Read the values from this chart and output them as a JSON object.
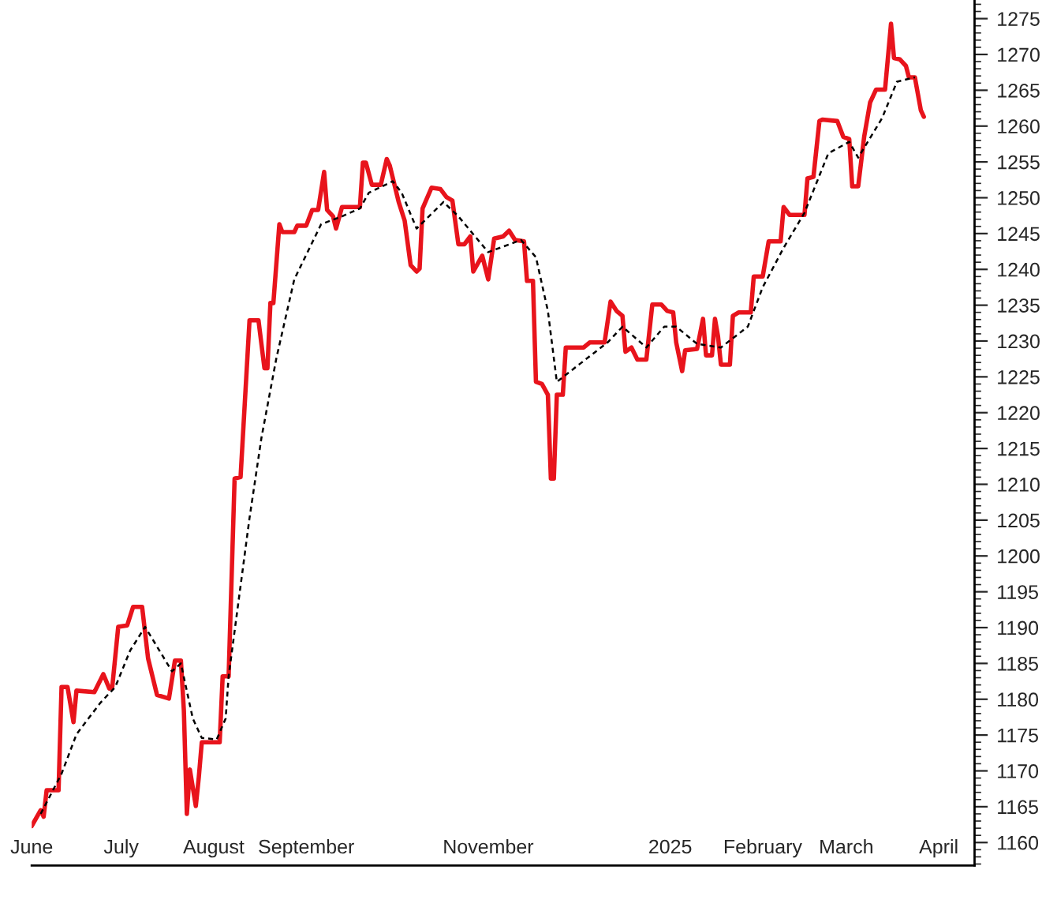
{
  "chart_data": {
    "type": "line",
    "x": [
      "2024-06-01",
      "2024-06-04",
      "2024-06-05",
      "2024-06-06",
      "2024-06-10",
      "2024-06-11",
      "2024-06-13",
      "2024-06-15",
      "2024-06-16",
      "2024-06-22",
      "2024-06-25",
      "2024-06-27",
      "2024-06-28",
      "2024-06-30",
      "2024-07-03",
      "2024-07-05",
      "2024-07-08",
      "2024-07-10",
      "2024-07-13",
      "2024-07-17",
      "2024-07-19",
      "2024-07-21",
      "2024-07-22",
      "2024-07-23",
      "2024-07-24",
      "2024-07-26",
      "2024-07-27",
      "2024-07-28",
      "2024-08-03",
      "2024-08-04",
      "2024-08-06",
      "2024-08-08",
      "2024-08-10",
      "2024-08-13",
      "2024-08-16",
      "2024-08-18",
      "2024-08-19",
      "2024-08-20",
      "2024-08-21",
      "2024-08-23",
      "2024-08-24",
      "2024-08-28",
      "2024-08-29",
      "2024-09-01",
      "2024-09-03",
      "2024-09-05",
      "2024-09-07",
      "2024-09-08",
      "2024-09-10",
      "2024-09-11",
      "2024-09-13",
      "2024-09-19",
      "2024-09-20",
      "2024-09-21",
      "2024-09-23",
      "2024-09-26",
      "2024-09-28",
      "2024-09-29",
      "2024-10-02",
      "2024-10-04",
      "2024-10-06",
      "2024-10-08",
      "2024-10-09",
      "2024-10-10",
      "2024-10-13",
      "2024-10-16",
      "2024-10-18",
      "2024-10-20",
      "2024-10-22",
      "2024-10-24",
      "2024-10-26",
      "2024-10-27",
      "2024-10-30",
      "2024-11-01",
      "2024-11-03",
      "2024-11-06",
      "2024-11-08",
      "2024-11-10",
      "2024-11-13",
      "2024-11-14",
      "2024-11-16",
      "2024-11-17",
      "2024-11-19",
      "2024-11-21",
      "2024-11-22",
      "2024-11-23",
      "2024-11-24",
      "2024-11-26",
      "2024-11-27",
      "2024-12-03",
      "2024-12-05",
      "2024-12-10",
      "2024-12-12",
      "2024-12-14",
      "2024-12-16",
      "2024-12-17",
      "2024-12-19",
      "2024-12-21",
      "2024-12-24",
      "2024-12-26",
      "2024-12-29",
      "2024-12-31",
      "2025-01-02",
      "2025-01-03",
      "2025-01-05",
      "2025-01-06",
      "2025-01-10",
      "2025-01-12",
      "2025-01-13",
      "2025-01-15",
      "2025-01-16",
      "2025-01-17",
      "2025-01-18",
      "2025-01-21",
      "2025-01-22",
      "2025-01-24",
      "2025-01-28",
      "2025-01-29",
      "2025-02-01",
      "2025-02-03",
      "2025-02-07",
      "2025-02-08",
      "2025-02-10",
      "2025-02-15",
      "2025-02-16",
      "2025-02-18",
      "2025-02-20",
      "2025-02-21",
      "2025-02-26",
      "2025-02-28",
      "2025-03-02",
      "2025-03-03",
      "2025-03-05",
      "2025-03-07",
      "2025-03-09",
      "2025-03-11",
      "2025-03-14",
      "2025-03-16",
      "2025-03-17",
      "2025-03-19",
      "2025-03-21",
      "2025-03-22",
      "2025-03-24",
      "2025-03-26",
      "2025-03-27"
    ],
    "series": [
      {
        "color": "#e8141c",
        "line_style": "solid",
        "values": [
          1162.3,
          1164.5,
          1163.6,
          1167.3,
          1167.3,
          1181.7,
          1181.7,
          1176.8,
          1181.2,
          1181.0,
          1183.5,
          1181.5,
          1181.7,
          1190.1,
          1190.3,
          1192.9,
          1192.9,
          1185.7,
          1180.6,
          1180.1,
          1185.4,
          1185.4,
          1178.4,
          1164.0,
          1170.2,
          1165.1,
          1169.1,
          1174.0,
          1174.0,
          1183.2,
          1183.2,
          1210.8,
          1211.0,
          1232.9,
          1232.9,
          1226.2,
          1226.2,
          1235.3,
          1235.3,
          1246.3,
          1245.2,
          1245.2,
          1246.1,
          1246.1,
          1248.3,
          1248.3,
          1253.6,
          1248.3,
          1247.4,
          1245.7,
          1248.7,
          1248.7,
          1254.9,
          1254.9,
          1251.8,
          1251.8,
          1255.4,
          1254.5,
          1249.4,
          1246.8,
          1240.6,
          1239.7,
          1240.1,
          1248.5,
          1251.4,
          1251.2,
          1250.1,
          1249.6,
          1243.5,
          1243.5,
          1244.6,
          1239.7,
          1241.9,
          1238.6,
          1244.3,
          1244.6,
          1245.4,
          1244.1,
          1243.9,
          1238.4,
          1238.4,
          1224.3,
          1224.0,
          1222.5,
          1210.8,
          1210.8,
          1222.5,
          1222.5,
          1229.1,
          1229.1,
          1229.8,
          1229.8,
          1235.5,
          1234.2,
          1233.5,
          1228.5,
          1229.1,
          1227.4,
          1227.4,
          1235.1,
          1235.1,
          1234.2,
          1234.0,
          1229.8,
          1225.8,
          1228.7,
          1228.9,
          1233.1,
          1228.0,
          1228.0,
          1233.1,
          1230.7,
          1226.7,
          1226.7,
          1233.5,
          1234.0,
          1234.0,
          1239.0,
          1239.0,
          1243.9,
          1243.9,
          1248.7,
          1247.6,
          1247.6,
          1252.7,
          1252.9,
          1260.7,
          1260.9,
          1260.7,
          1258.5,
          1258.2,
          1251.6,
          1251.6,
          1258.5,
          1263.3,
          1265.1,
          1265.1,
          1274.3,
          1269.5,
          1269.3,
          1268.4,
          1266.8,
          1266.8,
          1262.2,
          1261.3
        ]
      },
      {
        "color": "#000000",
        "line_style": "dashed",
        "x": [
          "2024-06-04",
          "2024-06-11",
          "2024-06-16",
          "2024-06-24",
          "2024-06-29",
          "2024-07-04",
          "2024-07-09",
          "2024-07-18",
          "2024-07-21",
          "2024-07-25",
          "2024-07-28",
          "2024-08-02",
          "2024-08-05",
          "2024-08-06",
          "2024-08-13",
          "2024-08-17",
          "2024-08-22",
          "2024-08-28",
          "2024-09-06",
          "2024-09-13",
          "2024-09-19",
          "2024-09-22",
          "2024-09-30",
          "2024-10-03",
          "2024-10-08",
          "2024-10-17",
          "2024-10-22",
          "2024-11-01",
          "2024-11-12",
          "2024-11-17",
          "2024-11-21",
          "2024-11-24",
          "2024-12-02",
          "2024-12-11",
          "2024-12-16",
          "2024-12-24",
          "2024-12-30",
          "2025-01-03",
          "2025-01-10",
          "2025-01-18",
          "2025-01-27",
          "2025-02-01",
          "2025-02-08",
          "2025-02-15",
          "2025-02-23",
          "2025-03-02",
          "2025-03-05",
          "2025-03-13",
          "2025-03-18",
          "2025-03-24"
        ],
        "values": [
          1164.0,
          1169.6,
          1175.1,
          1179.5,
          1181.7,
          1186.8,
          1190.1,
          1183.9,
          1185.0,
          1177.3,
          1174.6,
          1174.4,
          1177.3,
          1183.2,
          1205.3,
          1216.5,
          1227.6,
          1238.6,
          1246.3,
          1247.4,
          1248.5,
          1250.7,
          1252.3,
          1250.7,
          1245.7,
          1249.4,
          1247.4,
          1242.4,
          1244.1,
          1241.7,
          1234.2,
          1224.3,
          1226.9,
          1229.8,
          1232.0,
          1229.1,
          1232.0,
          1232.0,
          1229.6,
          1229.1,
          1232.0,
          1237.5,
          1243.0,
          1247.9,
          1256.2,
          1257.8,
          1255.6,
          1261.1,
          1266.2,
          1266.8
        ]
      }
    ],
    "xlim": [
      "2024-06-01",
      "2025-04-13"
    ],
    "xticks": [
      {
        "value": "2024-06-01",
        "label": "June"
      },
      {
        "value": "2024-07-01",
        "label": "July"
      },
      {
        "value": "2024-08-01",
        "label": "August"
      },
      {
        "value": "2024-09-01",
        "label": "September"
      },
      {
        "value": "2024-11-01",
        "label": "November"
      },
      {
        "value": "2025-01-01",
        "label": "2025"
      },
      {
        "value": "2025-02-01",
        "label": "February"
      },
      {
        "value": "2025-03-01",
        "label": "March"
      },
      {
        "value": "2025-04-01",
        "label": "April"
      }
    ],
    "ylim": [
      1156.8,
      1277.6
    ],
    "yticks": [
      1160,
      1165,
      1170,
      1175,
      1180,
      1185,
      1190,
      1195,
      1200,
      1205,
      1210,
      1215,
      1220,
      1225,
      1230,
      1235,
      1240,
      1245,
      1250,
      1255,
      1260,
      1265,
      1270,
      1275
    ],
    "grid": false
  }
}
